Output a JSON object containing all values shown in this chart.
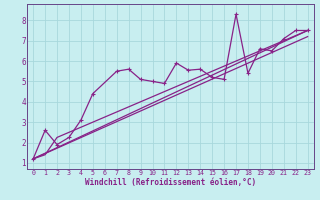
{
  "title": "",
  "xlabel": "Windchill (Refroidissement éolien,°C)",
  "bg_color": "#c8eef0",
  "grid_color": "#a8d8dc",
  "line_color": "#882288",
  "axis_color": "#664488",
  "xlim": [
    -0.5,
    23.5
  ],
  "ylim": [
    0.7,
    8.8
  ],
  "xticks": [
    0,
    1,
    2,
    3,
    4,
    5,
    6,
    7,
    8,
    9,
    10,
    11,
    12,
    13,
    14,
    15,
    16,
    17,
    18,
    19,
    20,
    21,
    22,
    23
  ],
  "yticks": [
    1,
    2,
    3,
    4,
    5,
    6,
    7,
    8
  ],
  "line1_x": [
    0,
    1,
    2,
    3,
    4,
    5,
    7,
    8,
    9,
    10,
    11,
    12,
    13,
    14,
    15,
    16,
    17,
    18,
    19,
    20,
    21,
    22,
    23
  ],
  "line1_y": [
    1.2,
    2.6,
    1.9,
    2.25,
    3.1,
    4.4,
    5.5,
    5.6,
    5.1,
    5.0,
    4.9,
    5.9,
    5.55,
    5.6,
    5.2,
    5.1,
    8.3,
    5.4,
    6.6,
    6.5,
    7.1,
    7.5,
    7.5
  ],
  "line2_x": [
    0,
    1,
    2,
    23
  ],
  "line2_y": [
    1.2,
    1.4,
    2.25,
    7.5
  ],
  "line3_x": [
    0,
    23
  ],
  "line3_y": [
    1.2,
    7.5
  ],
  "line4_x": [
    0,
    23
  ],
  "line4_y": [
    1.2,
    7.2
  ]
}
